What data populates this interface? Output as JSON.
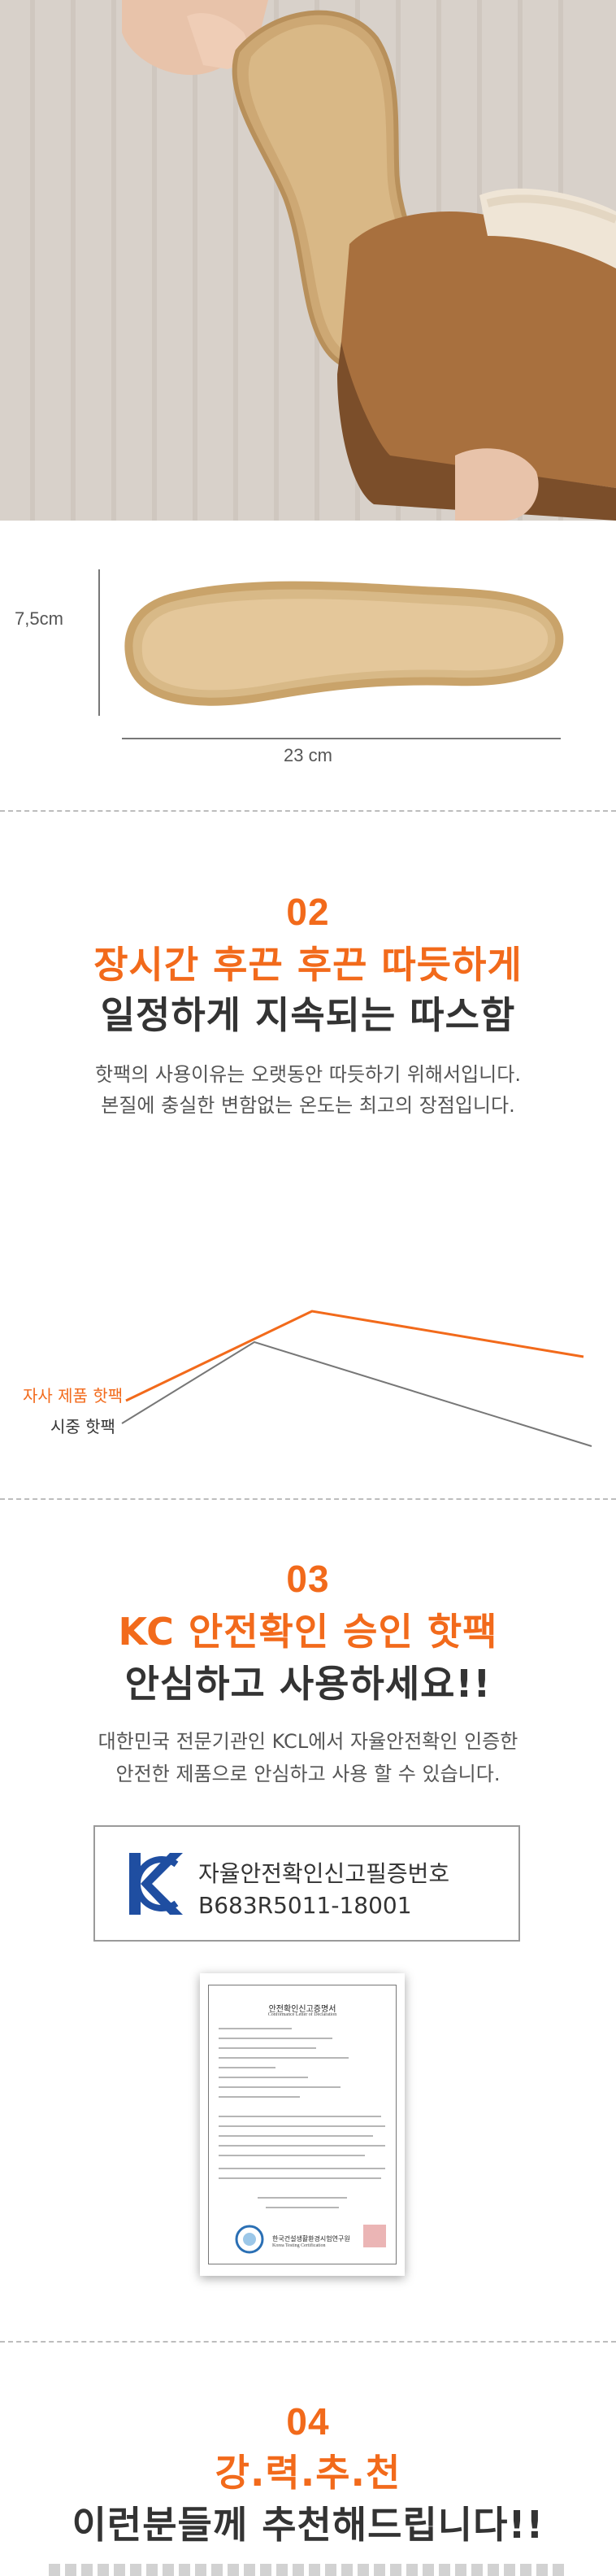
{
  "size": {
    "height_label": "7,5cm",
    "width_label": "23 cm"
  },
  "section2": {
    "number": "02",
    "headline_orange": "장시간 후끈 후끈 따듯하게",
    "headline_dark": "일정하게 지속되는 따스함",
    "desc_line1": "핫팩의 사용이유는 오랫동안 따듯하기 위해서입니다.",
    "desc_line2": "본질에 충실한 변함없는 온도는 최고의 장점입니다.",
    "legend_own": "자사 제품 핫팩",
    "legend_market": "시중 핫팩"
  },
  "chart_data": {
    "type": "line",
    "series": [
      {
        "name": "자사 제품 핫팩",
        "color": "#f26a1b"
      },
      {
        "name": "시중 핫팩",
        "color": "#777777"
      }
    ]
  },
  "section3": {
    "number": "03",
    "headline_orange": "KC 안전확인 승인 핫팩",
    "headline_dark": "안심하고 사용하세요!!",
    "desc_line1": "대한민국 전문기관인 KCL에서 자율안전확인 인증한",
    "desc_line2": "안전한 제품으로 안심하고 사용 할 수 있습니다.",
    "kc_title": "자율안전확인신고필증번호",
    "kc_number": "B683R5011-18001"
  },
  "certificate": {
    "title": "안전확인신고증명서",
    "subtitle": "Conformance Letter of Declaration",
    "issuer": "한국건설생활환경시험연구원",
    "issuer_en": "Korea Testing Certification"
  },
  "section4": {
    "number": "04",
    "headline_orange": "강.력.추.천",
    "headline_dark": "이런분들께 추천해드립니다!!"
  },
  "colors": {
    "accent": "#f26a1b",
    "text": "#333333",
    "kc_blue": "#1f4ea1"
  }
}
